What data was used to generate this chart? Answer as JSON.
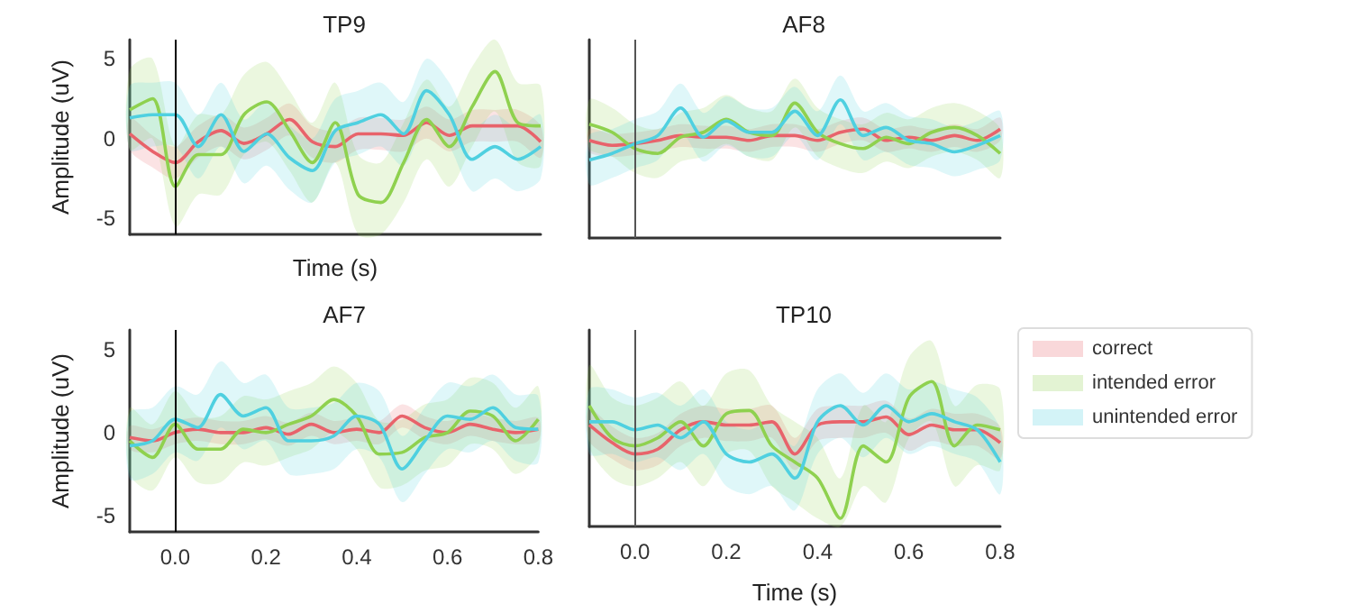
{
  "chart_data": [
    {
      "type": "line",
      "title": "TP9",
      "xlabel": "Time (s)",
      "ylabel": "Amplitude (uV)",
      "tick_labels": "y",
      "grid": false,
      "xlim": [
        -0.1,
        0.8
      ],
      "ylim": [
        -6,
        6.2
      ],
      "yticks": [
        -5,
        0,
        5
      ],
      "ref_lines": [
        {
          "axis": "x",
          "value": 0,
          "color": "#000000"
        }
      ],
      "x": [
        -0.1,
        -0.05,
        0,
        0.05,
        0.1,
        0.15,
        0.2,
        0.25,
        0.3,
        0.35,
        0.4,
        0.45,
        0.5,
        0.55,
        0.6,
        0.65,
        0.7,
        0.75,
        0.8
      ],
      "series": [
        {
          "color": "#e8636b",
          "values": [
            0.3,
            -0.8,
            -1.5,
            -0.2,
            0.5,
            -0.3,
            0.3,
            1.2,
            -0.2,
            -0.5,
            0.3,
            0.3,
            0.2,
            1.0,
            0.2,
            0.8,
            0.8,
            0.8,
            -0.2
          ],
          "lower": [
            -0.7,
            -1.8,
            -2.5,
            -1.2,
            -0.5,
            -1.3,
            -0.7,
            0.2,
            -1.2,
            -1.5,
            -0.7,
            -0.7,
            -0.8,
            0,
            -0.8,
            -0.2,
            -0.2,
            -0.2,
            -1.2
          ],
          "upper": [
            1.3,
            0.2,
            -0.5,
            0.8,
            1.5,
            0.7,
            1.3,
            2.2,
            0.8,
            0.5,
            1.3,
            1.3,
            1.2,
            2,
            1.2,
            1.8,
            1.8,
            1.8,
            0.8
          ]
        },
        {
          "color": "#8fd14f",
          "values": [
            1.8,
            2.5,
            -3,
            -1,
            -1,
            1.5,
            2.3,
            0.5,
            -1.5,
            1,
            -3.5,
            -4,
            -1.5,
            1.2,
            -0.5,
            2,
            4.2,
            1,
            0.8
          ],
          "lower": [
            -0.7,
            0,
            -5.5,
            -3.5,
            -3.5,
            -1,
            -0.2,
            -2,
            -4,
            -1.5,
            -6,
            -6,
            -4,
            -1.3,
            -3,
            -0.5,
            1.7,
            -1.5,
            -1.7
          ],
          "upper": [
            4.3,
            5,
            -0.5,
            1.5,
            1.5,
            4,
            4.8,
            3,
            1,
            3.5,
            -1,
            -1.5,
            1,
            3.7,
            2,
            4.5,
            6.2,
            3.5,
            3.3
          ]
        },
        {
          "color": "#4fd0e0",
          "values": [
            1.3,
            1.5,
            1.5,
            -0.5,
            1.5,
            -0.8,
            0.3,
            -1.2,
            -2,
            0.5,
            1,
            1.5,
            0.3,
            3,
            1.5,
            -1.3,
            -0.5,
            -1.3,
            -0.5
          ],
          "lower": [
            -0.7,
            -0.5,
            -0.5,
            -2.5,
            -0.5,
            -2.8,
            -1.7,
            -3.2,
            -4,
            -1.5,
            -1,
            -0.5,
            -1.7,
            1,
            -0.5,
            -3.3,
            -2.5,
            -3.3,
            -2.5
          ],
          "upper": [
            3.3,
            3.5,
            3.5,
            1.5,
            3.5,
            1.2,
            2.3,
            0.8,
            0,
            2.5,
            3,
            3.5,
            2.3,
            5,
            3.5,
            0.7,
            1.5,
            0.7,
            1.5
          ]
        }
      ]
    },
    {
      "type": "line",
      "title": "AF8",
      "tick_labels": false,
      "grid": false,
      "xlim": [
        -0.1,
        0.8
      ],
      "ylim": [
        -6,
        6.2
      ],
      "ref_lines": [
        {
          "axis": "x",
          "value": 0,
          "color": "#555555"
        }
      ],
      "x": [
        -0.1,
        -0.05,
        0,
        0.05,
        0.1,
        0.15,
        0.2,
        0.25,
        0.3,
        0.35,
        0.4,
        0.45,
        0.5,
        0.55,
        0.6,
        0.65,
        0.7,
        0.75,
        0.8
      ],
      "series": [
        {
          "color": "#e8636b",
          "values": [
            0,
            -0.3,
            -0.2,
            0,
            0.3,
            0.2,
            0.2,
            0,
            0.3,
            0.3,
            0,
            0.5,
            0.7,
            0,
            0.2,
            0,
            0.3,
            0,
            0.7
          ],
          "lower": [
            -0.7,
            -1,
            -0.9,
            -0.7,
            -0.4,
            -0.5,
            -0.5,
            -0.7,
            -0.4,
            -0.4,
            -0.7,
            -0.2,
            0,
            -0.7,
            -0.5,
            -0.7,
            -0.4,
            -0.7,
            0
          ],
          "upper": [
            0.7,
            0.4,
            0.5,
            0.7,
            1,
            0.9,
            0.9,
            0.7,
            1,
            1,
            0.7,
            1.2,
            1.4,
            0.7,
            0.9,
            0.7,
            1,
            0.7,
            1.4
          ]
        },
        {
          "color": "#8fd14f",
          "values": [
            1,
            0.5,
            -0.5,
            -0.8,
            0.2,
            0.5,
            1.3,
            0.5,
            0.3,
            2.3,
            0.5,
            -0.2,
            -0.5,
            0.2,
            -0.2,
            0.5,
            0.8,
            0.3,
            -0.8
          ],
          "lower": [
            -0.5,
            -1,
            -2,
            -2.3,
            -1.3,
            -1,
            -0.2,
            -1,
            -1.2,
            0.8,
            -1,
            -1.7,
            -2,
            -1.3,
            -1.7,
            -1,
            -0.7,
            -1.2,
            -2.3
          ],
          "upper": [
            2.5,
            2,
            1,
            0.7,
            1.7,
            2,
            2.8,
            2,
            1.8,
            3.8,
            2,
            1.3,
            1,
            1.7,
            1.3,
            2,
            2.3,
            1.8,
            0.7
          ]
        },
        {
          "color": "#4fd0e0",
          "values": [
            -1.2,
            -0.8,
            -0.2,
            0.3,
            2,
            0.2,
            1.2,
            0.5,
            0.5,
            1.8,
            0.3,
            2.5,
            0.3,
            0.8,
            0,
            -0.2,
            -0.7,
            -0.3,
            0.3
          ],
          "lower": [
            -2.7,
            -2.3,
            -1.7,
            -1.2,
            0.5,
            -1.3,
            -0.3,
            -1,
            -1,
            0.3,
            -1.2,
            1,
            -1.2,
            -0.7,
            -1.5,
            -1.7,
            -2.2,
            -1.8,
            -1.2
          ],
          "upper": [
            0.3,
            0.7,
            1.3,
            1.8,
            3.5,
            1.7,
            2.7,
            2,
            2,
            3.3,
            1.8,
            4,
            1.8,
            2.3,
            1.5,
            1.3,
            0.8,
            1.2,
            1.8
          ]
        }
      ]
    },
    {
      "type": "line",
      "title": "AF7",
      "ylabel": "Amplitude (uV)",
      "grid": false,
      "xlim": [
        -0.1,
        0.8
      ],
      "ylim": [
        -6,
        6.2
      ],
      "yticks": [
        -5,
        0,
        5
      ],
      "xticks": [
        {
          "value": 0,
          "label": "0.0"
        },
        {
          "value": 0.2,
          "label": "0.2"
        },
        {
          "value": 0.4,
          "label": "0.4"
        },
        {
          "value": 0.6,
          "label": "0.6"
        },
        {
          "value": 0.8,
          "label": "0.8"
        }
      ],
      "ref_lines": [
        {
          "axis": "x",
          "value": 0,
          "color": "#000000"
        }
      ],
      "x": [
        -0.1,
        -0.05,
        0,
        0.05,
        0.1,
        0.15,
        0.2,
        0.25,
        0.3,
        0.35,
        0.4,
        0.45,
        0.5,
        0.55,
        0.6,
        0.65,
        0.7,
        0.75,
        0.8
      ],
      "series": [
        {
          "color": "#e8636b",
          "values": [
            -0.3,
            -0.5,
            0,
            0.2,
            0,
            0,
            0.3,
            -0.1,
            0.5,
            0,
            0.2,
            0,
            1,
            0.3,
            0,
            0.5,
            0.2,
            0,
            0.2
          ],
          "lower": [
            -1,
            -1.2,
            -0.7,
            -0.5,
            -0.7,
            -0.7,
            -0.4,
            -0.8,
            -0.2,
            -0.7,
            -0.5,
            -0.7,
            0.3,
            -0.4,
            -0.7,
            -0.2,
            -0.5,
            -0.7,
            -0.5
          ],
          "upper": [
            0.4,
            0.2,
            0.7,
            0.9,
            0.7,
            0.7,
            1,
            0.6,
            1.2,
            0.7,
            0.9,
            0.7,
            1.7,
            1,
            0.7,
            1.2,
            0.9,
            0.7,
            0.9
          ]
        },
        {
          "color": "#8fd14f",
          "values": [
            -0.5,
            -1.5,
            0.5,
            -1,
            -1,
            0.2,
            0,
            0.5,
            1,
            2,
            1,
            -1.3,
            -1.2,
            -0.3,
            0,
            1.3,
            1,
            -0.5,
            0.8
          ],
          "lower": [
            -2.5,
            -3.5,
            -1.5,
            -3,
            -3,
            -1.8,
            -2,
            -1.5,
            -1,
            0,
            -1,
            -3.3,
            -3.2,
            -2.3,
            -2,
            -0.7,
            -1,
            -2.5,
            -1.2
          ],
          "upper": [
            1.5,
            0.5,
            2.5,
            1,
            1,
            2.2,
            2,
            2.5,
            3,
            4,
            3,
            0.7,
            0.8,
            1.7,
            2,
            3.3,
            3,
            1.5,
            2.8
          ]
        },
        {
          "color": "#4fd0e0",
          "values": [
            -0.8,
            -0.5,
            0.8,
            0.3,
            2.3,
            1,
            1.5,
            -0.5,
            -0.5,
            -0.2,
            1,
            0.5,
            -2.2,
            -0.5,
            1,
            0.8,
            1.5,
            0.3,
            0.2
          ],
          "lower": [
            -2.8,
            -2.5,
            -1.2,
            -1.7,
            0.3,
            -1,
            -0.5,
            -2.5,
            -2.5,
            -2.2,
            -1,
            -1.5,
            -4.2,
            -2.5,
            -1,
            -1.2,
            -0.5,
            -1.7,
            -1.8
          ],
          "upper": [
            1.2,
            1.5,
            2.8,
            2.3,
            4.3,
            3,
            3.5,
            1.5,
            1.5,
            1.8,
            3,
            2.5,
            -0.2,
            1.5,
            3,
            2.8,
            3.5,
            2.3,
            2.2
          ]
        }
      ]
    },
    {
      "type": "line",
      "title": "TP10",
      "xlabel": "Time (s)",
      "tick_labels": "x",
      "grid": false,
      "legend": "right",
      "xlim": [
        -0.1,
        0.8
      ],
      "ylim": [
        -6,
        6.2
      ],
      "xticks": [
        {
          "value": 0,
          "label": "0.0"
        },
        {
          "value": 0.2,
          "label": "0.2"
        },
        {
          "value": 0.4,
          "label": "0.4"
        },
        {
          "value": 0.6,
          "label": "0.6"
        },
        {
          "value": 0.8,
          "label": "0.8"
        }
      ],
      "ref_lines": [
        {
          "axis": "x",
          "value": 0,
          "color": "#555555"
        }
      ],
      "x": [
        -0.1,
        -0.05,
        0,
        0.05,
        0.1,
        0.15,
        0.2,
        0.25,
        0.3,
        0.35,
        0.4,
        0.45,
        0.5,
        0.55,
        0.6,
        0.65,
        0.7,
        0.75,
        0.8
      ],
      "series": [
        {
          "name": "correct",
          "color": "#e8636b",
          "values": [
            0.3,
            -0.8,
            -1.5,
            -1.2,
            0,
            0.5,
            0.3,
            0.3,
            0.5,
            -1.5,
            0.3,
            0.5,
            0.5,
            0.8,
            -0.3,
            0.3,
            0,
            0,
            -0.8
          ],
          "lower": [
            -0.7,
            -1.8,
            -2.5,
            -2.2,
            -1,
            -0.5,
            -0.7,
            -0.7,
            -0.5,
            -2.5,
            -0.7,
            -0.5,
            -0.5,
            -0.2,
            -1.3,
            -0.7,
            -1,
            -1,
            -1.8
          ],
          "upper": [
            1.3,
            0.2,
            -0.5,
            -0.2,
            1,
            1.5,
            1.3,
            1.3,
            1.5,
            -0.5,
            1.3,
            1.5,
            1.5,
            1.8,
            0.7,
            1.3,
            1,
            1,
            0.2
          ]
        },
        {
          "name": "intended error",
          "color": "#8fd14f",
          "values": [
            1.5,
            -0.5,
            -1,
            -0.5,
            0.5,
            -1,
            1,
            1.2,
            -1,
            -2,
            -3,
            -5.5,
            -1,
            -2,
            2,
            3,
            -1,
            0.3,
            0
          ],
          "lower": [
            -1,
            -3,
            -3.5,
            -3,
            -2,
            -3.5,
            -1.5,
            -1.3,
            -3.5,
            -4.5,
            -5.5,
            -6,
            -3.5,
            -4.5,
            -0.5,
            0.5,
            -3.5,
            -2.2,
            -2.5
          ],
          "upper": [
            4,
            2,
            1.5,
            2,
            3,
            1.5,
            3.5,
            3.7,
            1.5,
            0.5,
            -0.5,
            -3,
            1.5,
            0.5,
            4.5,
            5.5,
            1.5,
            2.8,
            2.5
          ]
        },
        {
          "name": "unintended error",
          "color": "#4fd0e0",
          "values": [
            0.5,
            0.5,
            0,
            0.3,
            -0.5,
            0.5,
            -1.5,
            -2,
            -1.5,
            -3,
            0.5,
            1.5,
            0.3,
            1.5,
            0.5,
            1,
            0.5,
            0,
            -2
          ],
          "lower": [
            -1.5,
            -1.5,
            -2,
            -1.7,
            -2.5,
            -1.5,
            -3.5,
            -4,
            -3.5,
            -5,
            -1.5,
            -0.5,
            -1.7,
            -0.5,
            -1.5,
            -1,
            -1.5,
            -2,
            -4
          ],
          "upper": [
            2.5,
            2.5,
            2,
            2.3,
            1.5,
            2.5,
            0.5,
            0,
            0.5,
            -1,
            2.5,
            3.5,
            2.3,
            3.5,
            2.5,
            3,
            2.5,
            2,
            0
          ]
        }
      ]
    }
  ]
}
